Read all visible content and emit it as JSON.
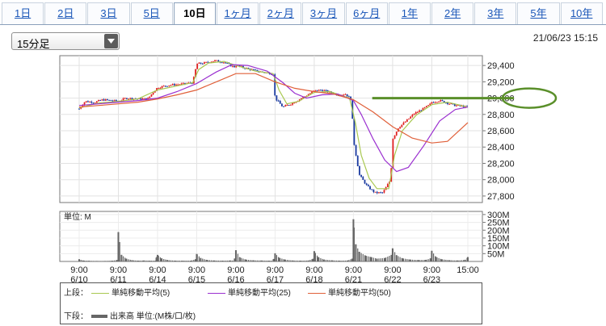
{
  "tabs": [
    "1日",
    "2日",
    "3日",
    "5日",
    "10日",
    "1ヶ月",
    "2ヶ月",
    "3ヶ月",
    "6ヶ月",
    "1年",
    "2年",
    "3年",
    "5年",
    "10年"
  ],
  "active_tab": "10日",
  "period_select": {
    "value": "15分足"
  },
  "timestamp": "21/06/23 15:15",
  "legend": {
    "upper_label": "上段：",
    "lower_label": "下段：",
    "items": [
      {
        "label": "単純移動平均(5)",
        "color": "#a8c850"
      },
      {
        "label": "単純移動平均(25)",
        "color": "#9b30d0"
      },
      {
        "label": "単純移動平均(50)",
        "color": "#e0603a"
      }
    ],
    "volume_label": "出来高 単位:(M株/口/枚)"
  },
  "colors": {
    "candle_up": "#e02020",
    "candle_down": "#1a3aa0",
    "volume": "#666666",
    "highlight": "#5a8f2a"
  },
  "chart_data": {
    "type": "line",
    "price_axis": {
      "ticks": [
        "29,400",
        "29,200",
        "29,000",
        "28,800",
        "28,600",
        "28,400",
        "28,200",
        "28,000",
        "27,800"
      ],
      "ylim": [
        27720,
        29520
      ]
    },
    "volume_axis": {
      "unit_label": "単位: M",
      "ticks": [
        "300M",
        "250M",
        "200M",
        "150M",
        "100M",
        "50M"
      ],
      "ylim": [
        0,
        320
      ]
    },
    "x_ticks": [
      {
        "time": "9:00",
        "date": "6/10"
      },
      {
        "time": "9:00",
        "date": "6/11"
      },
      {
        "time": "9:00",
        "date": "6/14"
      },
      {
        "time": "9:00",
        "date": "6/15"
      },
      {
        "time": "9:00",
        "date": "6/16"
      },
      {
        "time": "9:00",
        "date": "6/17"
      },
      {
        "time": "9:00",
        "date": "6/18"
      },
      {
        "time": "9:00",
        "date": "6/21"
      },
      {
        "time": "9:00",
        "date": "6/22"
      },
      {
        "time": "9:00",
        "date": "6/23"
      },
      {
        "time": "15:00",
        "date": ""
      }
    ],
    "close_series": [
      [
        0,
        28870
      ],
      [
        0.15,
        28960
      ],
      [
        0.4,
        28950
      ],
      [
        0.6,
        28980
      ],
      [
        0.85,
        28970
      ],
      [
        1,
        28960
      ],
      [
        1.2,
        29000
      ],
      [
        1.5,
        28990
      ],
      [
        1.75,
        28990
      ],
      [
        1.9,
        29080
      ],
      [
        2,
        29130
      ],
      [
        2.3,
        29160
      ],
      [
        2.6,
        29170
      ],
      [
        2.9,
        29190
      ],
      [
        3,
        29420
      ],
      [
        3.2,
        29430
      ],
      [
        3.45,
        29460
      ],
      [
        3.7,
        29440
      ],
      [
        3.95,
        29380
      ],
      [
        4,
        29400
      ],
      [
        4.3,
        29360
      ],
      [
        4.55,
        29330
      ],
      [
        4.8,
        29310
      ],
      [
        4.95,
        29300
      ],
      [
        5,
        29000
      ],
      [
        5.2,
        28890
      ],
      [
        5.4,
        28930
      ],
      [
        5.6,
        28980
      ],
      [
        5.8,
        29030
      ],
      [
        6,
        29090
      ],
      [
        6.2,
        29100
      ],
      [
        6.4,
        29070
      ],
      [
        6.6,
        29040
      ],
      [
        6.8,
        29050
      ],
      [
        6.95,
        28980
      ],
      [
        7,
        28490
      ],
      [
        7.15,
        28060
      ],
      [
        7.35,
        27920
      ],
      [
        7.55,
        27840
      ],
      [
        7.75,
        27840
      ],
      [
        7.95,
        28000
      ],
      [
        8,
        28500
      ],
      [
        8.15,
        28640
      ],
      [
        8.35,
        28720
      ],
      [
        8.55,
        28810
      ],
      [
        8.75,
        28860
      ],
      [
        8.95,
        28920
      ],
      [
        9,
        28950
      ],
      [
        9.2,
        28970
      ],
      [
        9.4,
        28940
      ],
      [
        9.6,
        28910
      ],
      [
        9.8,
        28900
      ],
      [
        9.92,
        28880
      ]
    ],
    "series": [
      {
        "name": "単純移動平均(5)",
        "points": [
          [
            0,
            28880
          ],
          [
            0.5,
            28940
          ],
          [
            1,
            28960
          ],
          [
            1.5,
            28990
          ],
          [
            2,
            29100
          ],
          [
            2.5,
            29150
          ],
          [
            2.9,
            29190
          ],
          [
            3.05,
            29350
          ],
          [
            3.3,
            29430
          ],
          [
            3.7,
            29450
          ],
          [
            4,
            29400
          ],
          [
            4.5,
            29330
          ],
          [
            4.95,
            29300
          ],
          [
            5.1,
            29100
          ],
          [
            5.3,
            28930
          ],
          [
            5.6,
            28960
          ],
          [
            6,
            29070
          ],
          [
            6.4,
            29080
          ],
          [
            6.9,
            29000
          ],
          [
            7.05,
            28700
          ],
          [
            7.2,
            28300
          ],
          [
            7.4,
            28020
          ],
          [
            7.6,
            27890
          ],
          [
            7.9,
            27890
          ],
          [
            8.05,
            28300
          ],
          [
            8.25,
            28600
          ],
          [
            8.6,
            28790
          ],
          [
            9,
            28920
          ],
          [
            9.4,
            28950
          ],
          [
            9.92,
            28890
          ]
        ]
      },
      {
        "name": "単純移動平均(25)",
        "points": [
          [
            0,
            28910
          ],
          [
            0.5,
            28930
          ],
          [
            1,
            28950
          ],
          [
            1.5,
            28970
          ],
          [
            2,
            29000
          ],
          [
            2.5,
            29080
          ],
          [
            3,
            29180
          ],
          [
            3.5,
            29320
          ],
          [
            3.9,
            29410
          ],
          [
            4.3,
            29400
          ],
          [
            4.8,
            29330
          ],
          [
            5.2,
            29190
          ],
          [
            5.5,
            29060
          ],
          [
            5.8,
            29000
          ],
          [
            6.2,
            29040
          ],
          [
            6.6,
            29050
          ],
          [
            7,
            28970
          ],
          [
            7.2,
            28800
          ],
          [
            7.5,
            28500
          ],
          [
            7.8,
            28240
          ],
          [
            8.1,
            28100
          ],
          [
            8.4,
            28150
          ],
          [
            8.8,
            28420
          ],
          [
            9.2,
            28720
          ],
          [
            9.6,
            28860
          ],
          [
            9.92,
            28890
          ]
        ]
      },
      {
        "name": "単純移動平均(50)",
        "points": [
          [
            0,
            28890
          ],
          [
            0.5,
            28910
          ],
          [
            1,
            28930
          ],
          [
            1.5,
            28950
          ],
          [
            2,
            28990
          ],
          [
            2.5,
            29040
          ],
          [
            3,
            29100
          ],
          [
            3.5,
            29200
          ],
          [
            4,
            29300
          ],
          [
            4.5,
            29300
          ],
          [
            5,
            29200
          ],
          [
            5.5,
            29120
          ],
          [
            6,
            29080
          ],
          [
            6.5,
            29050
          ],
          [
            7,
            28980
          ],
          [
            7.5,
            28830
          ],
          [
            8,
            28650
          ],
          [
            8.5,
            28510
          ],
          [
            9,
            28450
          ],
          [
            9.4,
            28470
          ],
          [
            9.92,
            28700
          ]
        ]
      }
    ],
    "volume": [
      [
        0,
        14
      ],
      [
        0.1,
        6
      ],
      [
        0.25,
        4
      ],
      [
        0.45,
        3
      ],
      [
        0.65,
        3
      ],
      [
        0.85,
        5
      ],
      [
        0.97,
        9
      ],
      [
        1,
        188
      ],
      [
        1.08,
        42
      ],
      [
        1.2,
        18
      ],
      [
        1.35,
        8
      ],
      [
        1.5,
        5
      ],
      [
        1.65,
        6
      ],
      [
        1.8,
        5
      ],
      [
        1.97,
        24
      ],
      [
        2,
        42
      ],
      [
        2.1,
        20
      ],
      [
        2.25,
        9
      ],
      [
        2.45,
        5
      ],
      [
        2.65,
        5
      ],
      [
        2.85,
        5
      ],
      [
        2.97,
        14
      ],
      [
        3,
        48
      ],
      [
        3.1,
        22
      ],
      [
        3.25,
        10
      ],
      [
        3.45,
        6
      ],
      [
        3.65,
        5
      ],
      [
        3.85,
        6
      ],
      [
        3.97,
        19
      ],
      [
        4,
        72
      ],
      [
        4.1,
        26
      ],
      [
        4.25,
        12
      ],
      [
        4.45,
        7
      ],
      [
        4.65,
        6
      ],
      [
        4.85,
        5
      ],
      [
        4.97,
        16
      ],
      [
        5,
        52
      ],
      [
        5.1,
        24
      ],
      [
        5.25,
        12
      ],
      [
        5.45,
        6
      ],
      [
        5.65,
        5
      ],
      [
        5.85,
        6
      ],
      [
        5.97,
        17
      ],
      [
        6,
        66
      ],
      [
        6.1,
        28
      ],
      [
        6.25,
        12
      ],
      [
        6.45,
        7
      ],
      [
        6.65,
        5
      ],
      [
        6.85,
        6
      ],
      [
        6.97,
        18
      ],
      [
        7,
        270
      ],
      [
        7.06,
        110
      ],
      [
        7.15,
        62
      ],
      [
        7.3,
        38
      ],
      [
        7.45,
        28
      ],
      [
        7.6,
        18
      ],
      [
        7.8,
        22
      ],
      [
        7.97,
        42
      ],
      [
        8,
        84
      ],
      [
        8.1,
        40
      ],
      [
        8.25,
        20
      ],
      [
        8.45,
        12
      ],
      [
        8.65,
        9
      ],
      [
        8.85,
        10
      ],
      [
        8.97,
        20
      ],
      [
        9,
        68
      ],
      [
        9.1,
        30
      ],
      [
        9.25,
        14
      ],
      [
        9.45,
        8
      ],
      [
        9.65,
        6
      ],
      [
        9.85,
        10
      ],
      [
        9.92,
        28
      ]
    ],
    "highlight": {
      "value": "29,000",
      "from_x": 7.48,
      "to_x": 10.1
    }
  }
}
